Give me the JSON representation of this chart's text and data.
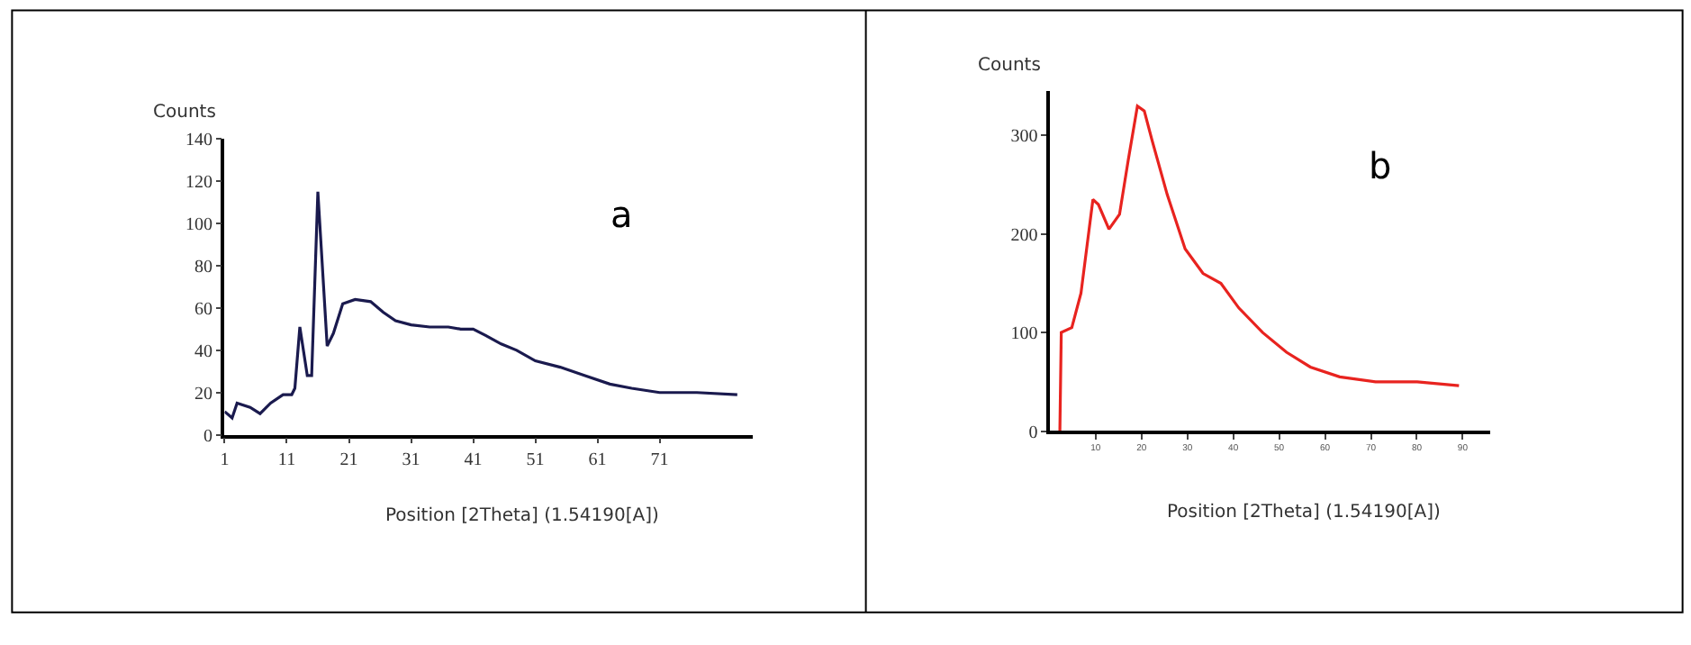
{
  "chart_data": [
    {
      "type": "line",
      "xlabel": "Position [2Theta] (1.54190[A])",
      "ylabel": "Counts",
      "annotations": [
        "a"
      ],
      "xlim": [
        1,
        86
      ],
      "xticks": [
        1,
        11,
        21,
        31,
        41,
        51,
        61,
        71
      ],
      "ylim": [
        0,
        140
      ],
      "yticks": [
        0,
        20,
        40,
        60,
        80,
        100,
        120,
        140
      ],
      "x": [
        1,
        2.2,
        3,
        5.1,
        6.7,
        8.4,
        10.4,
        11.8,
        12.3,
        13.1,
        14.3,
        15,
        16,
        17.5,
        18.5,
        20,
        22,
        24.5,
        26.5,
        28.5,
        31,
        34,
        37,
        39,
        41,
        43,
        45.5,
        48,
        51,
        55,
        59,
        63,
        66.5,
        71,
        77,
        83.5
      ],
      "series": [
        {
          "color": "#1a1a4e",
          "values": [
            11,
            8,
            15,
            13,
            10,
            15,
            19,
            19,
            22,
            51,
            28,
            28,
            115,
            42,
            48,
            62,
            64,
            63,
            58,
            54,
            52,
            51,
            51,
            50,
            50,
            47,
            43,
            40,
            35,
            32,
            28,
            24,
            22,
            20,
            20,
            19
          ]
        }
      ]
    },
    {
      "type": "line",
      "xlabel": "Position [2Theta] (1.54190[A])",
      "ylabel": "Counts",
      "annotations": [
        "b"
      ],
      "xlim": [
        0,
        96
      ],
      "xticks": [
        10,
        20,
        30,
        40,
        50,
        60,
        70,
        80,
        90
      ],
      "ylim": [
        0,
        345
      ],
      "yticks": [
        0,
        100,
        200,
        300
      ],
      "x": [
        2.2,
        2.5,
        4.8,
        6.8,
        9.4,
        10.6,
        12.9,
        15.2,
        17.1,
        19.1,
        20.6,
        22.3,
        25.6,
        29.5,
        33.4,
        37.3,
        41.2,
        46.4,
        51.6,
        56.8,
        63.2,
        71,
        80.1,
        89.2
      ],
      "series": [
        {
          "color": "#e8231f",
          "values": [
            0,
            100,
            105,
            140,
            235,
            230,
            205,
            220,
            275,
            330,
            325,
            295,
            240,
            185,
            160,
            150,
            125,
            100,
            80,
            65,
            55,
            50,
            50,
            46
          ]
        }
      ]
    }
  ]
}
